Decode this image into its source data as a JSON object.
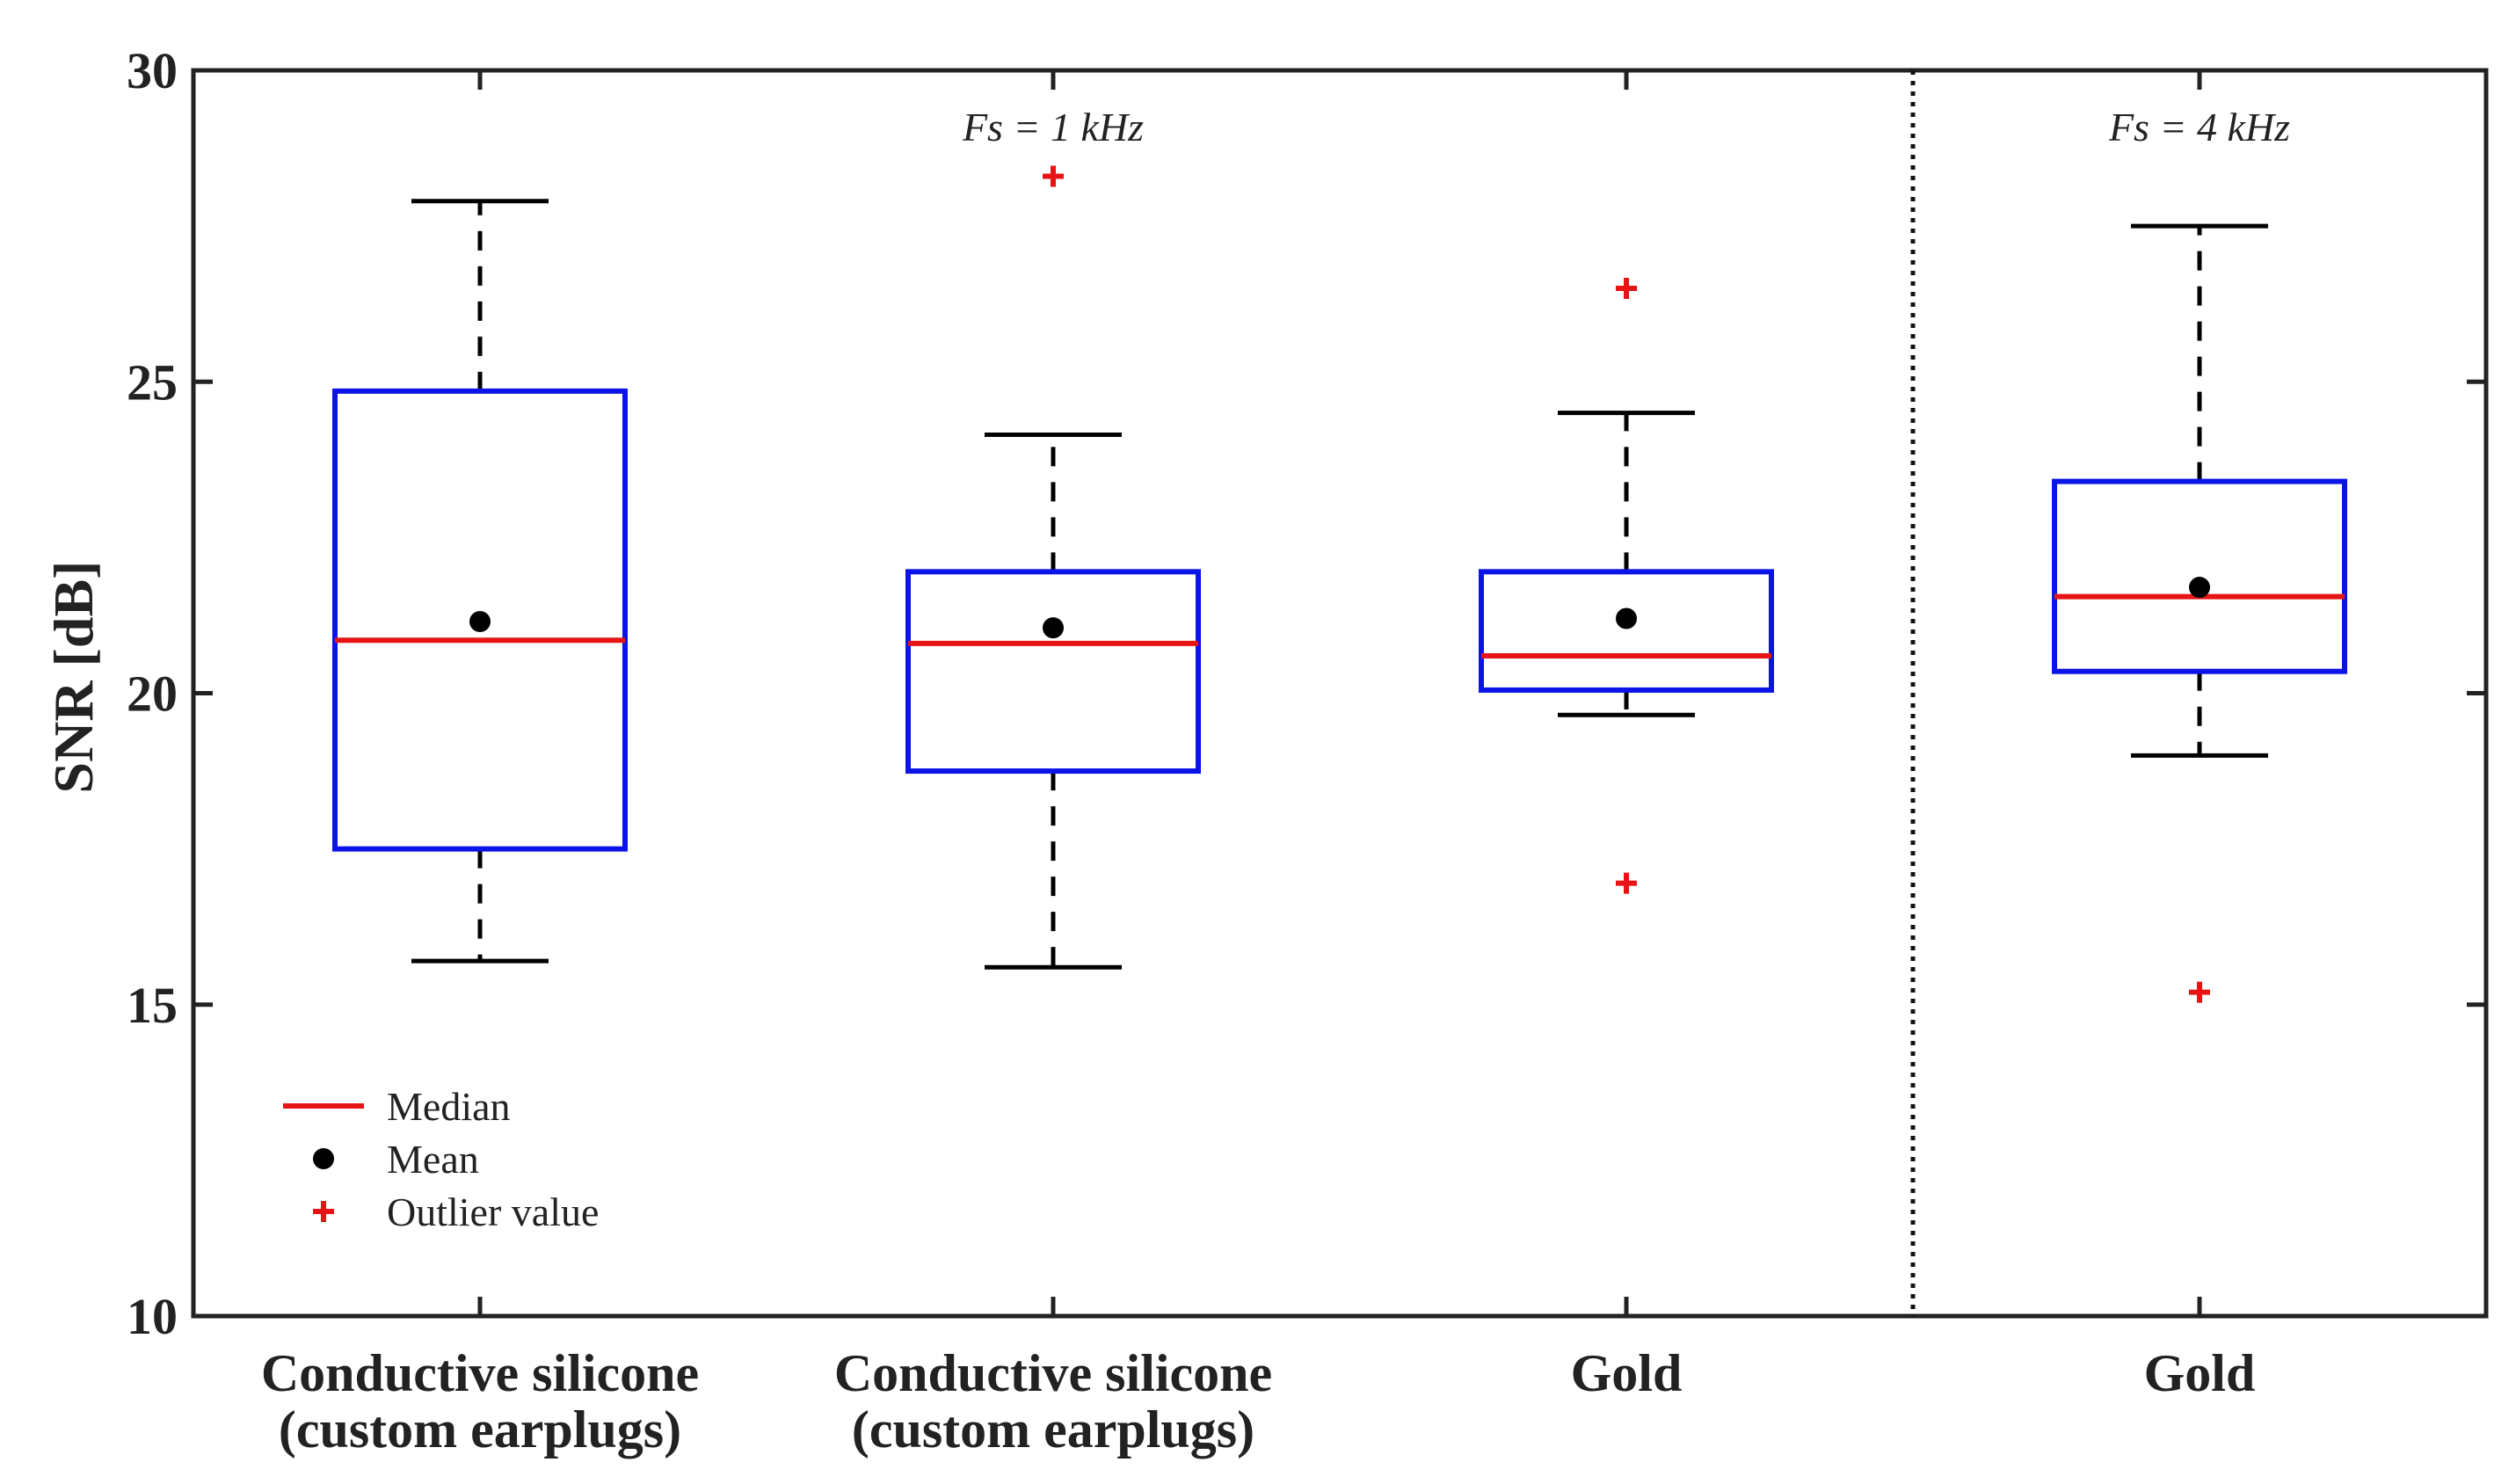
{
  "chart_data": {
    "type": "boxplot",
    "ylabel": "SNR [dB]",
    "ylim": [
      10,
      30
    ],
    "yticks": [
      10,
      15,
      20,
      25,
      30
    ],
    "grid": false,
    "categories": [
      [
        "Conductive silicone",
        "(custom earplugs)"
      ],
      [
        "Conductive silicone",
        "(custom earplugs)"
      ],
      [
        "Gold"
      ],
      [
        "Gold"
      ]
    ],
    "groups": [
      {
        "label": "Fs = 1 kHz",
        "categories": [
          0,
          1,
          2
        ]
      },
      {
        "label": "Fs = 4 kHz",
        "categories": [
          3
        ]
      }
    ],
    "boxes": [
      {
        "q1": 17.5,
        "median": 20.85,
        "q3": 24.85,
        "whisker_low": 15.7,
        "whisker_high": 27.9,
        "mean": 21.15,
        "outliers": []
      },
      {
        "q1": 18.75,
        "median": 20.8,
        "q3": 21.95,
        "whisker_low": 15.6,
        "whisker_high": 24.15,
        "mean": 21.05,
        "outliers": [
          28.3
        ]
      },
      {
        "q1": 20.05,
        "median": 20.6,
        "q3": 21.95,
        "whisker_low": 19.65,
        "whisker_high": 24.5,
        "mean": 21.2,
        "outliers": [
          26.5,
          16.95
        ]
      },
      {
        "q1": 20.35,
        "median": 21.55,
        "q3": 23.4,
        "whisker_low": 19.0,
        "whisker_high": 27.5,
        "mean": 21.7,
        "outliers": [
          15.2
        ]
      }
    ],
    "legend": {
      "position": "bottom-left",
      "items": [
        {
          "kind": "median",
          "label": "Median"
        },
        {
          "kind": "mean",
          "label": "Mean"
        },
        {
          "kind": "outlier",
          "label": "Outlier value"
        }
      ]
    },
    "colors": {
      "box": "#0a14e6",
      "median": "#e61414",
      "mean": "#000000",
      "outlier": "#e61414",
      "whisker": "#000000",
      "axis": "#222222",
      "text": "#222222"
    }
  }
}
